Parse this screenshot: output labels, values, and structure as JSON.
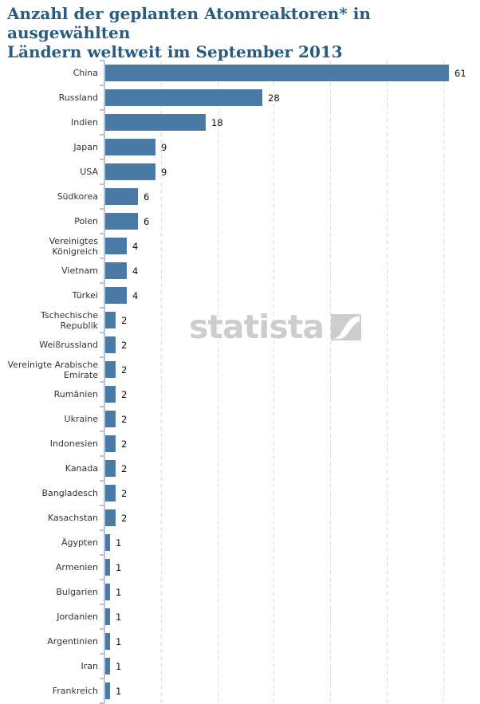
{
  "header": {
    "title_line1": "Anzahl der geplanten Atomreaktoren* in ausgewählten",
    "title_line2": "Ländern weltweit im September 2013"
  },
  "watermark": {
    "text": "statista",
    "logo": "statista-wave-logo"
  },
  "colors": {
    "bar": "#4b7aa6",
    "title": "#275b80",
    "axis": "#b6c5d6",
    "gridline": "#dcdcdc",
    "category_label": "#333333",
    "value_label": "#111111",
    "watermark": "#cdcdcd",
    "background": "#ffffff"
  },
  "chart_data": {
    "type": "bar",
    "orientation": "horizontal",
    "title": "Anzahl der geplanten Atomreaktoren* in ausgewählten Ländern weltweit im September 2013",
    "categories": [
      "China",
      "Russland",
      "Indien",
      "Japan",
      "USA",
      "Südkorea",
      "Polen",
      "Vereinigtes\nKönigreich",
      "Vietnam",
      "Türkei",
      "Tschechische\nRepublik",
      "Weißrussland",
      "Vereinigte Arabische\nEmirate",
      "Rumänien",
      "Ukraine",
      "Indonesien",
      "Kanada",
      "Bangladesch",
      "Kasachstan",
      "Ägypten",
      "Armenien",
      "Bulgarien",
      "Jordanien",
      "Argentinien",
      "Iran",
      "Frankreich"
    ],
    "values": [
      61,
      28,
      18,
      9,
      9,
      6,
      6,
      4,
      4,
      4,
      2,
      2,
      2,
      2,
      2,
      2,
      2,
      2,
      2,
      1,
      1,
      1,
      1,
      1,
      1,
      1
    ],
    "xlabel": "",
    "ylabel": "",
    "xlim": [
      0,
      65
    ],
    "gridline_values": [
      10,
      20,
      30,
      40,
      50,
      60
    ],
    "grid": "vertical-dashed",
    "legend": "none",
    "value_labels_shown": true
  }
}
